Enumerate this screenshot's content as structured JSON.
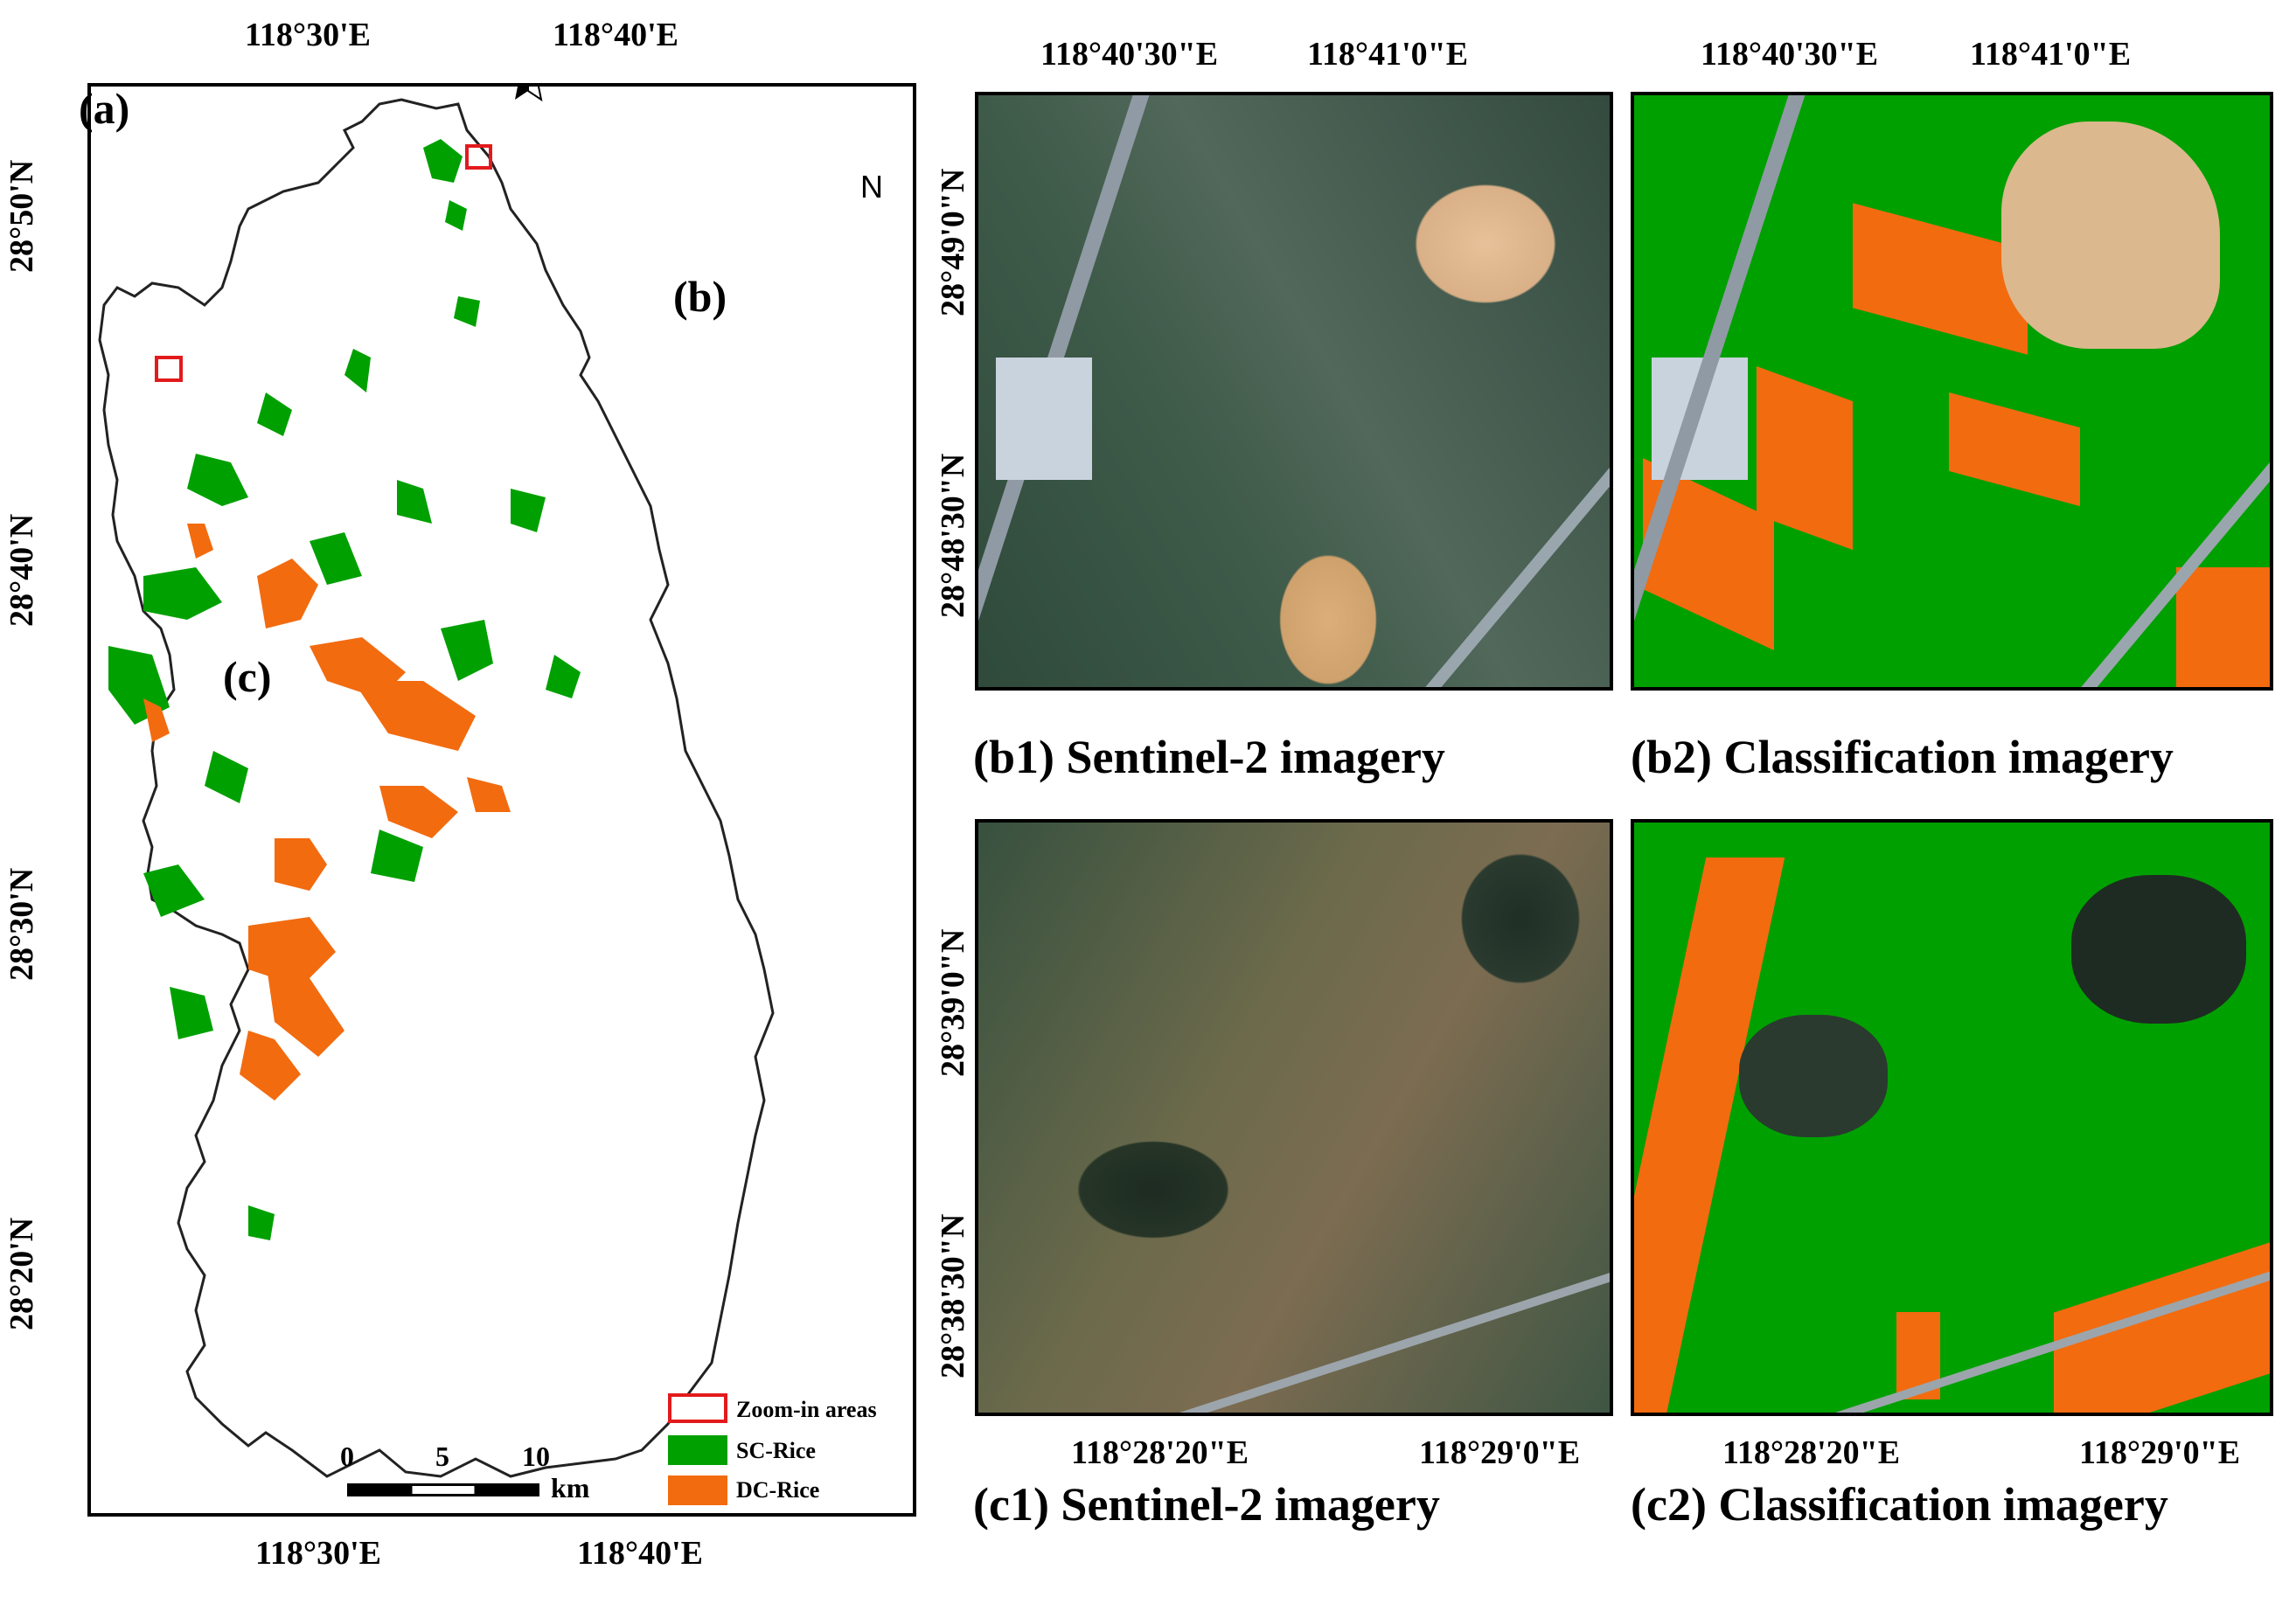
{
  "panel_a": {
    "label": "(a)",
    "top_lon": [
      "118°30'E",
      "118°40'E"
    ],
    "bottom_lon": [
      "118°30'E",
      "118°40'E"
    ],
    "lat": [
      "28°50'N",
      "28°40'N",
      "28°30'N",
      "28°20'N"
    ],
    "zoom_labels": [
      "(b)",
      "(c)"
    ],
    "north": "N",
    "scale": {
      "ticks": [
        "0",
        "5",
        "10"
      ],
      "unit": "km"
    },
    "legend": [
      {
        "label": "Zoom-in areas",
        "color": "#e31a1c",
        "kind": "outline"
      },
      {
        "label": "SC-Rice",
        "color": "#00a000",
        "kind": "fill"
      },
      {
        "label": "DC-Rice",
        "color": "#f26b0f",
        "kind": "fill"
      }
    ]
  },
  "panels_b": {
    "top_lon": [
      "118°40'30\"E",
      "118°41'0\"E"
    ],
    "lat": [
      "28°49'0\"N",
      "28°48'30\"N"
    ],
    "b1_caption": "(b1) Sentinel-2 imagery",
    "b2_caption": "(b2) Classification imagery"
  },
  "panels_c": {
    "bottom_lon": [
      "118°28'20\"E",
      "118°29'0\"E"
    ],
    "lat": [
      "28°39'0\"N",
      "28°38'30\"N"
    ],
    "c1_caption": "(c1) Sentinel-2 imagery",
    "c2_caption": "(c2) Classification imagery"
  },
  "colors": {
    "sc_rice": "#00a000",
    "dc_rice": "#f26b0f",
    "zoom": "#e31a1c"
  }
}
